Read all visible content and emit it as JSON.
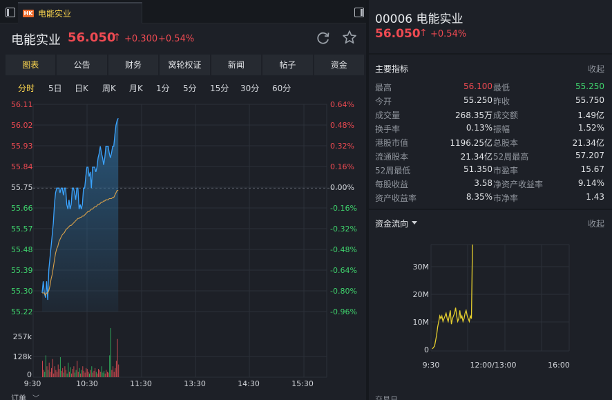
{
  "tab": {
    "badge": "HK",
    "title": "电能实业"
  },
  "header": {
    "name": "电能实业",
    "price": "56.050",
    "arrow": "↑",
    "change": "+0.300",
    "change_pct": "+0.54%"
  },
  "nav": [
    "图表",
    "公告",
    "财务",
    "窝轮权证",
    "新闻",
    "帖子",
    "资金"
  ],
  "periods": [
    "分时",
    "5日",
    "日K",
    "周K",
    "月K",
    "1分",
    "5分",
    "15分",
    "30分",
    "60分"
  ],
  "colors": {
    "up": "#ef4a52",
    "down": "#3fd46d",
    "accent": "#ffd84f",
    "price_line": "#3ba4ff",
    "avg_line": "#d9a14a"
  },
  "chart_data": [
    {
      "type": "line",
      "title": "",
      "x_ticks": [
        "9:30",
        "10:30",
        "11:30",
        "13:30",
        "14:30",
        "15:30"
      ],
      "y_ticks_price": [
        "56.11",
        "56.02",
        "55.93",
        "55.84",
        "55.75",
        "55.66",
        "55.57",
        "55.48",
        "55.39",
        "55.30",
        "55.22"
      ],
      "y_ticks_pct": [
        "0.64%",
        "0.48%",
        "0.32%",
        "0.16%",
        "0.00%",
        "-0.16%",
        "-0.32%",
        "-0.48%",
        "-0.64%",
        "-0.80%",
        "-0.96%"
      ],
      "ylim": [
        55.22,
        56.11
      ],
      "prev_close": 55.75,
      "volume_ticks": [
        "257k",
        "128k",
        "0"
      ],
      "volume_ylim": [
        0,
        300
      ],
      "series": [
        {
          "name": "",
          "values": [
            55.3,
            55.35,
            55.3,
            55.28,
            55.35,
            55.27,
            55.4,
            55.45,
            55.5,
            55.55,
            55.6,
            55.68,
            55.73,
            55.75,
            55.75,
            55.75,
            55.73,
            55.75,
            55.75,
            55.72,
            55.75,
            55.75,
            55.68,
            55.66,
            55.7,
            55.66,
            55.68,
            55.75,
            55.75,
            55.73,
            55.7,
            55.75,
            55.75,
            55.66,
            55.68,
            55.66,
            55.68,
            55.75,
            55.75,
            55.8,
            55.84,
            55.84,
            55.8,
            55.82,
            55.75,
            55.84,
            55.84,
            55.84,
            55.82,
            55.84,
            55.88,
            55.9,
            55.93,
            55.9,
            55.88,
            55.85,
            55.88,
            55.93,
            55.93,
            55.93,
            55.9,
            55.88,
            55.9,
            55.93,
            55.93,
            55.98,
            56.02,
            56.04,
            56.05
          ]
        },
        {
          "name": "",
          "values": [
            55.3,
            55.3,
            55.3,
            55.29,
            55.3,
            55.3,
            55.31,
            55.33,
            55.36,
            55.38,
            55.41,
            55.44,
            55.47,
            55.49,
            55.5,
            55.52,
            55.53,
            55.54,
            55.55,
            55.555,
            55.56,
            55.57,
            55.575,
            55.58,
            55.585,
            55.59,
            55.59,
            55.595,
            55.6,
            55.605,
            55.61,
            55.615,
            55.62,
            55.62,
            55.625,
            55.625,
            55.63,
            55.63,
            55.635,
            55.64,
            55.645,
            55.65,
            55.65,
            55.655,
            55.66,
            55.66,
            55.665,
            55.67,
            55.67,
            55.675,
            55.68,
            55.68,
            55.685,
            55.69,
            55.69,
            55.695,
            55.695,
            55.7,
            55.7,
            55.7,
            55.705,
            55.705,
            55.705,
            55.71,
            55.71,
            55.72,
            55.73,
            55.74,
            55.74
          ]
        }
      ],
      "volume": [
        90,
        40,
        30,
        120,
        60,
        40,
        80,
        30,
        50,
        100,
        20,
        60,
        40,
        30,
        70,
        45,
        110,
        35,
        50,
        25,
        60,
        40,
        20,
        80,
        30,
        55,
        20,
        45,
        60,
        25,
        40,
        90,
        30,
        50,
        20,
        40,
        60,
        35,
        25,
        50,
        45,
        30,
        20,
        40,
        60,
        25,
        35,
        50,
        30,
        20,
        45,
        40,
        30,
        60,
        25,
        35,
        20,
        40,
        30,
        25,
        120,
        270,
        40,
        60,
        30,
        50,
        90,
        210,
        70
      ]
    },
    {
      "type": "line",
      "title": "",
      "x_ticks": [
        "9:30",
        "12:00/13:00",
        "16:00"
      ],
      "y_ticks": [
        "30M",
        "20M",
        "10M",
        "0"
      ],
      "ylim": [
        0,
        38
      ],
      "values": [
        0,
        0.5,
        1,
        3,
        5,
        8,
        10,
        12,
        11,
        12,
        10,
        11,
        12,
        13,
        11,
        10,
        12,
        14,
        9,
        11,
        12,
        13,
        15,
        12,
        10,
        11,
        14,
        11,
        12,
        10,
        11,
        13,
        14,
        12,
        11,
        10,
        12,
        11,
        38
      ]
    }
  ],
  "side": {
    "code_name": "00006 电能实业",
    "price": "56.050",
    "arrow": "↑",
    "pct": "+0.54%",
    "indicators_title": "主要指标",
    "collapse": "收起",
    "indicators": [
      {
        "l1": "最高",
        "v1": "56.100",
        "c1": "red",
        "l2": "最低",
        "v2": "55.250",
        "c2": "green"
      },
      {
        "l1": "今开",
        "v1": "55.250",
        "c1": "",
        "l2": "昨收",
        "v2": "55.750",
        "c2": ""
      },
      {
        "l1": "成交量",
        "v1": "268.35万",
        "c1": "",
        "l2": "成交额",
        "v2": "1.49亿",
        "c2": ""
      },
      {
        "l1": "换手率",
        "v1": "0.13%",
        "c1": "",
        "l2": "振幅",
        "v2": "1.52%",
        "c2": ""
      },
      {
        "l1": "港股市值",
        "v1": "1196.25亿",
        "c1": "",
        "l2": "总股本",
        "v2": "21.34亿",
        "c2": ""
      },
      {
        "l1": "流通股本",
        "v1": "21.34亿",
        "c1": "",
        "l2": "52周最高",
        "v2": "57.207",
        "c2": ""
      },
      {
        "l1": "52周最低",
        "v1": "51.350",
        "c1": "",
        "l2": "市盈率",
        "v2": "15.67",
        "c2": ""
      },
      {
        "l1": "每股收益",
        "v1": "3.58",
        "c1": "",
        "l2": "净资产收益率",
        "v2": "9.14%",
        "c2": ""
      },
      {
        "l1": "资产收益率",
        "v1": "8.35%",
        "c1": "",
        "l2": "市净率",
        "v2": "1.43",
        "c2": ""
      }
    ],
    "flow_title": "资金流向",
    "flow_collapse": "收起",
    "bottom_label": "交易日"
  },
  "footer": {
    "orders_label": "订单",
    "orders_chevron": "﹀"
  }
}
